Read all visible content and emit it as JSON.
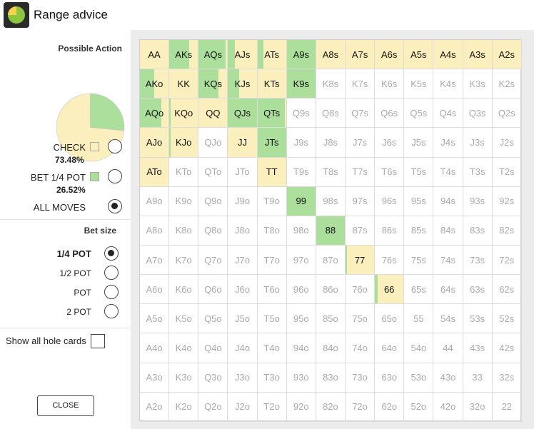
{
  "app": {
    "title": "Range advice",
    "icon": "pie-chart-icon"
  },
  "colors": {
    "check": "#fbf0bd",
    "bet": "#acdf9c",
    "empty": "#ffffff"
  },
  "actions": {
    "title": "Possible Action",
    "check": {
      "label": "CHECK",
      "pct": "73.48%",
      "share": 0.7348
    },
    "bet": {
      "label": "BET 1/4 POT",
      "pct": "26.52%",
      "share": 0.2652
    },
    "all": {
      "label": "ALL MOVES"
    },
    "selected": "all"
  },
  "bet_size": {
    "title": "Bet size",
    "options": [
      "1/4 POT",
      "1/2 POT",
      "POT",
      "2 POT"
    ],
    "selected": "1/4 POT"
  },
  "show_hole_cards": {
    "label": "Show all hole cards",
    "checked": false
  },
  "close_label": "CLOSE",
  "grid": {
    "ranks": [
      "A",
      "K",
      "Q",
      "J",
      "T",
      "9",
      "8",
      "7",
      "6",
      "5",
      "4",
      "3",
      "2"
    ],
    "mix": {
      "AA": [
        1.0,
        0.0
      ],
      "AKs": [
        0.3,
        0.7
      ],
      "AQs": [
        0.05,
        0.95
      ],
      "AJs": [
        0.75,
        0.25
      ],
      "ATs": [
        0.8,
        0.2
      ],
      "A9s": [
        0.0,
        1.0
      ],
      "A8s": [
        1.0,
        0.0
      ],
      "A7s": [
        1.0,
        0.0
      ],
      "A6s": [
        1.0,
        0.0
      ],
      "A5s": [
        1.0,
        0.0
      ],
      "A4s": [
        1.0,
        0.0
      ],
      "A3s": [
        1.0,
        0.0
      ],
      "A2s": [
        1.0,
        0.0
      ],
      "AKo": [
        0.5,
        0.5
      ],
      "KK": [
        1.0,
        0.0
      ],
      "KQs": [
        0.3,
        0.7
      ],
      "KJs": [
        0.6,
        0.4
      ],
      "KTs": [
        1.0,
        0.0
      ],
      "K9s": [
        0.0,
        1.0
      ],
      "AQo": [
        0.25,
        0.75
      ],
      "KQo": [
        0.95,
        0.05
      ],
      "QQ": [
        1.0,
        0.0
      ],
      "QJs": [
        0.0,
        1.0
      ],
      "QTs": [
        0.05,
        0.95
      ],
      "AJo": [
        1.0,
        0.0
      ],
      "KJo": [
        0.95,
        0.05
      ],
      "JJ": [
        1.0,
        0.0
      ],
      "JTs": [
        0.0,
        1.0
      ],
      "ATo": [
        1.0,
        0.0
      ],
      "TT": [
        1.0,
        0.0
      ],
      "99": [
        0.0,
        1.0
      ],
      "88": [
        0.0,
        1.0
      ],
      "77": [
        0.95,
        0.05
      ],
      "66": [
        0.9,
        0.1
      ]
    }
  }
}
